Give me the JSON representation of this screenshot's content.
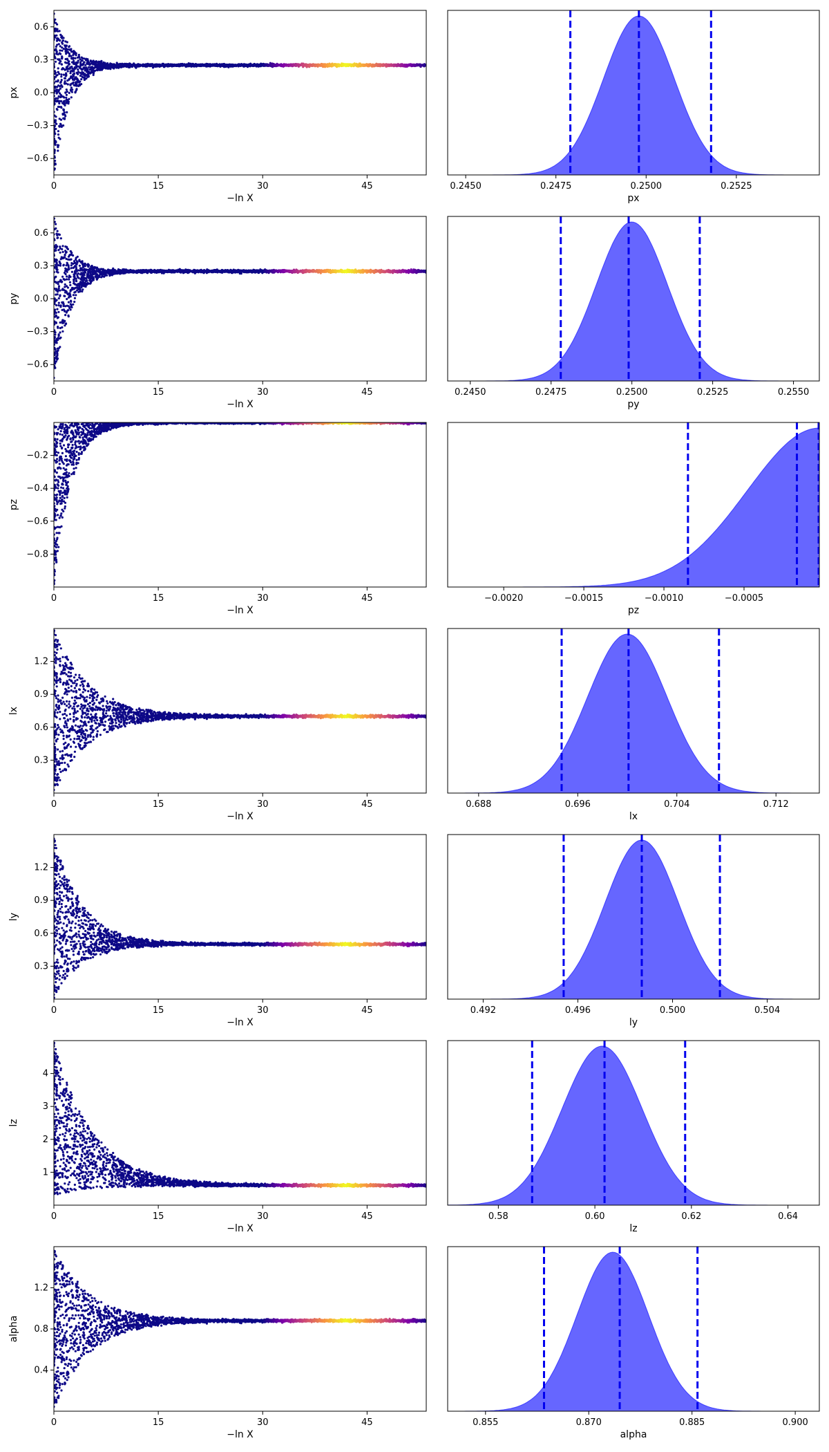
{
  "chart_data": [
    {
      "type": "scatter",
      "xlabel": "−ln X",
      "ylabel": "px",
      "x_ticks": [
        0,
        15,
        30,
        45
      ],
      "y_ticks": [
        -0.6,
        -0.3,
        0.0,
        0.3,
        0.6
      ],
      "xlim": [
        0,
        53.5
      ],
      "ylim": [
        -0.75,
        0.75
      ],
      "start_band": [
        -0.75,
        0.75
      ],
      "converged_value": 0.25,
      "shrink_rate": 0.45,
      "colormap": [
        "#0d0887",
        "#7e03a8",
        "#cc4778",
        "#f89540",
        "#f0f921"
      ],
      "color_peak_x": 42
    },
    {
      "type": "area",
      "xlabel": "px",
      "x_ticks": [
        0.245,
        0.2475,
        0.25,
        0.2525
      ],
      "x_tick_labels": [
        "0.2450",
        "0.2475",
        "0.2500",
        "0.2525"
      ],
      "xlim": [
        0.2445,
        0.2548
      ],
      "shape": "gaussian",
      "mode": 0.2498,
      "sigma": 0.00098,
      "quantiles": [
        0.2479,
        0.2498,
        0.2518
      ],
      "fill_color": "#6666ff",
      "line_color": "#0000ff"
    },
    {
      "type": "scatter",
      "xlabel": "−ln X",
      "ylabel": "py",
      "x_ticks": [
        0,
        15,
        30,
        45
      ],
      "y_ticks": [
        -0.6,
        -0.3,
        0.0,
        0.3,
        0.6
      ],
      "xlim": [
        0,
        53.5
      ],
      "ylim": [
        -0.75,
        0.75
      ],
      "start_band": [
        -0.75,
        0.75
      ],
      "converged_value": 0.25,
      "shrink_rate": 0.42,
      "colormap": [
        "#0d0887",
        "#7e03a8",
        "#cc4778",
        "#f89540",
        "#f0f921"
      ],
      "color_peak_x": 42
    },
    {
      "type": "area",
      "xlabel": "py",
      "x_ticks": [
        0.245,
        0.2475,
        0.25,
        0.2525,
        0.255
      ],
      "x_tick_labels": [
        "0.2450",
        "0.2475",
        "0.2500",
        "0.2525",
        "0.2550"
      ],
      "xlim": [
        0.2443,
        0.2558
      ],
      "shape": "gaussian",
      "mode": 0.25,
      "sigma": 0.0011,
      "quantiles": [
        0.2478,
        0.2499,
        0.2521
      ],
      "fill_color": "#6666ff",
      "line_color": "#0000ff"
    },
    {
      "type": "scatter",
      "xlabel": "−ln X",
      "ylabel": "pz",
      "x_ticks": [
        0,
        15,
        30,
        45
      ],
      "y_ticks": [
        -0.8,
        -0.6,
        -0.4,
        -0.2
      ],
      "xlim": [
        0,
        53.5
      ],
      "ylim": [
        -1.0,
        0.0
      ],
      "start_band": [
        -1.0,
        0.0
      ],
      "converged_value": -0.0003,
      "shrink_rate": 0.4,
      "colormap": [
        "#0d0887",
        "#7e03a8",
        "#cc4778",
        "#f89540",
        "#f0f921"
      ],
      "color_peak_x": 42
    },
    {
      "type": "area",
      "xlabel": "pz",
      "x_ticks": [
        -0.002,
        -0.0015,
        -0.001,
        -0.0005
      ],
      "x_tick_labels": [
        "−0.0020",
        "−0.0015",
        "−0.0010",
        "−0.0005"
      ],
      "xlim": [
        -0.00235,
        -3e-05
      ],
      "shape": "halfgaussian",
      "mode": -3e-05,
      "sigma": 0.00045,
      "quantiles": [
        -0.00085,
        -0.00017,
        -3e-05
      ],
      "fill_color": "#6666ff",
      "line_color": "#0000ff"
    },
    {
      "type": "scatter",
      "xlabel": "−ln X",
      "ylabel": "lx",
      "x_ticks": [
        0,
        15,
        30,
        45
      ],
      "y_ticks": [
        0.3,
        0.6,
        0.9,
        1.2
      ],
      "xlim": [
        0,
        53.5
      ],
      "ylim": [
        0.0,
        1.5
      ],
      "start_band": [
        0.0,
        1.5
      ],
      "converged_value": 0.7,
      "shrink_rate": 0.2,
      "colormap": [
        "#0d0887",
        "#7e03a8",
        "#cc4778",
        "#f89540",
        "#f0f921"
      ],
      "color_peak_x": 42
    },
    {
      "type": "area",
      "xlabel": "lx",
      "x_ticks": [
        0.688,
        0.696,
        0.704,
        0.712
      ],
      "x_tick_labels": [
        "0.688",
        "0.696",
        "0.704",
        "0.712"
      ],
      "xlim": [
        0.6855,
        0.7155
      ],
      "shape": "gaussian",
      "mode": 0.7,
      "sigma": 0.0032,
      "quantiles": [
        0.6947,
        0.7001,
        0.7074
      ],
      "fill_color": "#6666ff",
      "line_color": "#0000ff"
    },
    {
      "type": "scatter",
      "xlabel": "−ln X",
      "ylabel": "ly",
      "x_ticks": [
        0,
        15,
        30,
        45
      ],
      "y_ticks": [
        0.3,
        0.6,
        0.9,
        1.2
      ],
      "xlim": [
        0,
        53.5
      ],
      "ylim": [
        0.0,
        1.5
      ],
      "start_band": [
        0.0,
        1.5
      ],
      "converged_value": 0.5,
      "shrink_rate": 0.25,
      "colormap": [
        "#0d0887",
        "#7e03a8",
        "#cc4778",
        "#f89540",
        "#f0f921"
      ],
      "color_peak_x": 42
    },
    {
      "type": "area",
      "xlabel": "ly",
      "x_ticks": [
        0.492,
        0.496,
        0.5,
        0.504
      ],
      "x_tick_labels": [
        "0.492",
        "0.496",
        "0.500",
        "0.504"
      ],
      "xlim": [
        0.4905,
        0.5062
      ],
      "shape": "gaussian",
      "mode": 0.4987,
      "sigma": 0.00155,
      "quantiles": [
        0.4954,
        0.4987,
        0.502
      ],
      "fill_color": "#6666ff",
      "line_color": "#0000ff"
    },
    {
      "type": "scatter",
      "xlabel": "−ln X",
      "ylabel": "lz",
      "x_ticks": [
        0,
        15,
        30,
        45
      ],
      "y_ticks": [
        1,
        2,
        3,
        4
      ],
      "xlim": [
        0,
        53.5
      ],
      "ylim": [
        0.0,
        5.0
      ],
      "start_band": [
        0.3,
        5.0
      ],
      "converged_value": 0.6,
      "shrink_rate": 0.18,
      "colormap": [
        "#0d0887",
        "#7e03a8",
        "#cc4778",
        "#f89540",
        "#f0f921"
      ],
      "color_peak_x": 42
    },
    {
      "type": "area",
      "xlabel": "lz",
      "x_ticks": [
        0.58,
        0.6,
        0.62,
        0.64
      ],
      "x_tick_labels": [
        "0.58",
        "0.60",
        "0.62",
        "0.64"
      ],
      "xlim": [
        0.5695,
        0.6465
      ],
      "shape": "gaussian",
      "mode": 0.6015,
      "sigma": 0.0083,
      "quantiles": [
        0.587,
        0.602,
        0.6187
      ],
      "fill_color": "#6666ff",
      "line_color": "#0000ff"
    },
    {
      "type": "scatter",
      "xlabel": "−ln X",
      "ylabel": "alpha",
      "x_ticks": [
        0,
        15,
        30,
        45
      ],
      "y_ticks": [
        0.4,
        0.8,
        1.2
      ],
      "xlim": [
        0,
        53.5
      ],
      "ylim": [
        0.0,
        1.6
      ],
      "start_band": [
        0.0,
        1.6
      ],
      "converged_value": 0.88,
      "shrink_rate": 0.2,
      "colormap": [
        "#0d0887",
        "#7e03a8",
        "#cc4778",
        "#f89540",
        "#f0f921"
      ],
      "color_peak_x": 42
    },
    {
      "type": "area",
      "xlabel": "alpha",
      "x_ticks": [
        0.855,
        0.87,
        0.885,
        0.9
      ],
      "x_tick_labels": [
        "0.855",
        "0.870",
        "0.885",
        "0.900"
      ],
      "xlim": [
        0.8495,
        0.9035
      ],
      "shape": "gaussian",
      "mode": 0.8735,
      "sigma": 0.0052,
      "quantiles": [
        0.8635,
        0.8745,
        0.8858
      ],
      "fill_color": "#6666ff",
      "line_color": "#0000ff"
    }
  ]
}
